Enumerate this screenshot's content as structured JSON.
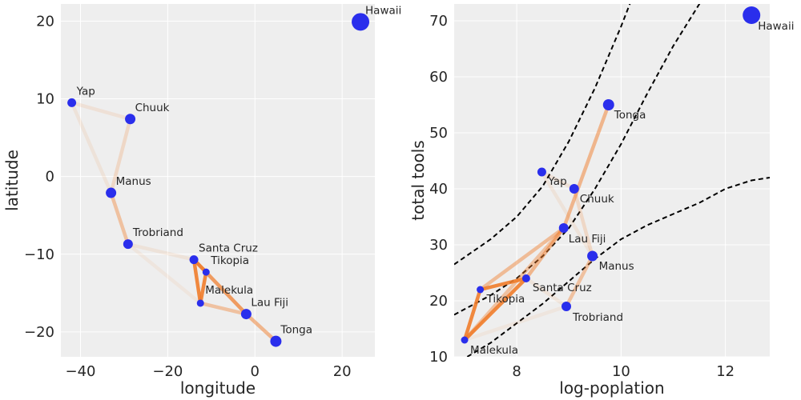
{
  "chart_data": [
    {
      "type": "scatter",
      "xlabel": "longitude",
      "ylabel": "latitude",
      "xlim": [
        -44.5,
        27.5
      ],
      "ylim": [
        -23.2,
        22.2
      ],
      "xticks": [
        -40,
        -20,
        0,
        20
      ],
      "yticks": [
        -20,
        -10,
        0,
        10,
        20
      ],
      "xtick_labels": [
        "−40",
        "−20",
        "0",
        "20"
      ],
      "ytick_labels": [
        "−20",
        "−10",
        "0",
        "10",
        "20"
      ],
      "grid": true,
      "point_color": "#2a2eec",
      "line_color": "#f07c2a",
      "points": [
        {
          "label": "Malekula",
          "x": -12.5,
          "y": -16.3,
          "r": 4.5
        },
        {
          "label": "Tikopia",
          "x": -11.2,
          "y": -12.3,
          "r": 4.5
        },
        {
          "label": "Santa Cruz",
          "x": -14.0,
          "y": -10.7,
          "r": 5.5
        },
        {
          "label": "Yap",
          "x": -42.0,
          "y": 9.5,
          "r": 5.5
        },
        {
          "label": "Lau Fiji",
          "x": -2.0,
          "y": -17.7,
          "r": 6.5
        },
        {
          "label": "Trobriand",
          "x": -29.1,
          "y": -8.7,
          "r": 6
        },
        {
          "label": "Chuuk",
          "x": -28.6,
          "y": 7.4,
          "r": 6.5
        },
        {
          "label": "Manus",
          "x": -33.0,
          "y": -2.1,
          "r": 6.5
        },
        {
          "label": "Tonga",
          "x": 4.8,
          "y": -21.2,
          "r": 7
        },
        {
          "label": "Hawaii",
          "x": 24.2,
          "y": 19.9,
          "r": 11
        }
      ],
      "links": [
        {
          "from": "Malekula",
          "to": "Tikopia",
          "weight": 0.9
        },
        {
          "from": "Malekula",
          "to": "Santa Cruz",
          "weight": 0.9
        },
        {
          "from": "Tikopia",
          "to": "Santa Cruz",
          "weight": 0.9
        },
        {
          "from": "Santa Cruz",
          "to": "Lau Fiji",
          "weight": 0.5
        },
        {
          "from": "Tikopia",
          "to": "Lau Fiji",
          "weight": 0.45
        },
        {
          "from": "Malekula",
          "to": "Lau Fiji",
          "weight": 0.4
        },
        {
          "from": "Lau Fiji",
          "to": "Tonga",
          "weight": 0.5
        },
        {
          "from": "Manus",
          "to": "Trobriand",
          "weight": 0.4
        },
        {
          "from": "Chuuk",
          "to": "Manus",
          "weight": 0.2
        },
        {
          "from": "Yap",
          "to": "Chuuk",
          "weight": 0.12
        },
        {
          "from": "Yap",
          "to": "Manus",
          "weight": 0.1
        },
        {
          "from": "Trobriand",
          "to": "Santa Cruz",
          "weight": 0.1
        },
        {
          "from": "Trobriand",
          "to": "Malekula",
          "weight": 0.08
        }
      ]
    },
    {
      "type": "scatter",
      "xlabel": "log-poplation",
      "ylabel": "total tools",
      "xlim": [
        6.8,
        12.85
      ],
      "ylim": [
        10,
        73
      ],
      "xticks": [
        8,
        10,
        12
      ],
      "yticks": [
        10,
        20,
        30,
        40,
        50,
        60,
        70
      ],
      "xtick_labels": [
        "8",
        "10",
        "12"
      ],
      "ytick_labels": [
        "10",
        "20",
        "30",
        "40",
        "50",
        "60",
        "70"
      ],
      "grid": true,
      "point_color": "#2a2eec",
      "line_color": "#f07c2a",
      "points": [
        {
          "label": "Malekula",
          "x": 7.0,
          "y": 13,
          "r": 4.5
        },
        {
          "label": "Tikopia",
          "x": 7.3,
          "y": 22,
          "r": 4.5
        },
        {
          "label": "Santa Cruz",
          "x": 8.18,
          "y": 24,
          "r": 5
        },
        {
          "label": "Yap",
          "x": 8.48,
          "y": 43,
          "r": 5.5
        },
        {
          "label": "Lau Fiji",
          "x": 8.9,
          "y": 33,
          "r": 6
        },
        {
          "label": "Trobriand",
          "x": 8.95,
          "y": 19,
          "r": 6
        },
        {
          "label": "Chuuk",
          "x": 9.1,
          "y": 40,
          "r": 6
        },
        {
          "label": "Manus",
          "x": 9.45,
          "y": 28,
          "r": 6.5
        },
        {
          "label": "Tonga",
          "x": 9.76,
          "y": 55,
          "r": 7
        },
        {
          "label": "Hawaii",
          "x": 12.5,
          "y": 71,
          "r": 11
        }
      ],
      "links": [
        {
          "from": "Malekula",
          "to": "Tikopia",
          "weight": 0.9
        },
        {
          "from": "Malekula",
          "to": "Santa Cruz",
          "weight": 0.9
        },
        {
          "from": "Tikopia",
          "to": "Santa Cruz",
          "weight": 0.9
        },
        {
          "from": "Santa Cruz",
          "to": "Lau Fiji",
          "weight": 0.5
        },
        {
          "from": "Tikopia",
          "to": "Lau Fiji",
          "weight": 0.45
        },
        {
          "from": "Malekula",
          "to": "Lau Fiji",
          "weight": 0.4
        },
        {
          "from": "Lau Fiji",
          "to": "Tonga",
          "weight": 0.5
        },
        {
          "from": "Manus",
          "to": "Trobriand",
          "weight": 0.4
        },
        {
          "from": "Chuuk",
          "to": "Manus",
          "weight": 0.2
        },
        {
          "from": "Yap",
          "to": "Chuuk",
          "weight": 0.12
        },
        {
          "from": "Yap",
          "to": "Manus",
          "weight": 0.1
        },
        {
          "from": "Trobriand",
          "to": "Santa Cruz",
          "weight": 0.1
        },
        {
          "from": "Trobriand",
          "to": "Malekula",
          "weight": 0.08
        }
      ],
      "interval_lines": [
        {
          "style": "dashed",
          "x": [
            6.8,
            7.5,
            8.0,
            8.5,
            9.0,
            9.5,
            10.0,
            10.5,
            11.0,
            11.5,
            12.0,
            12.5,
            12.85
          ],
          "y": [
            26.5,
            31,
            35,
            40.5,
            48.5,
            58,
            69,
            81,
            94,
            108,
            124,
            141,
            155
          ]
        },
        {
          "style": "dashed",
          "x": [
            6.8,
            7.5,
            8.0,
            8.5,
            9.0,
            9.5,
            10.0,
            10.5,
            11.0,
            11.5,
            12.0,
            12.5,
            12.85
          ],
          "y": [
            17.5,
            21,
            24,
            28,
            33,
            40,
            48,
            57,
            65.5,
            73,
            80,
            87.5,
            92
          ]
        },
        {
          "style": "dashed",
          "x": [
            7.05,
            7.5,
            8.0,
            8.5,
            9.0,
            9.5,
            10.0,
            10.5,
            11.0,
            11.5,
            12.0,
            12.5,
            12.85
          ],
          "y": [
            10,
            12.5,
            16,
            19.5,
            23.5,
            27.5,
            31,
            33.5,
            35.5,
            37.5,
            40,
            41.5,
            42
          ]
        }
      ]
    }
  ]
}
